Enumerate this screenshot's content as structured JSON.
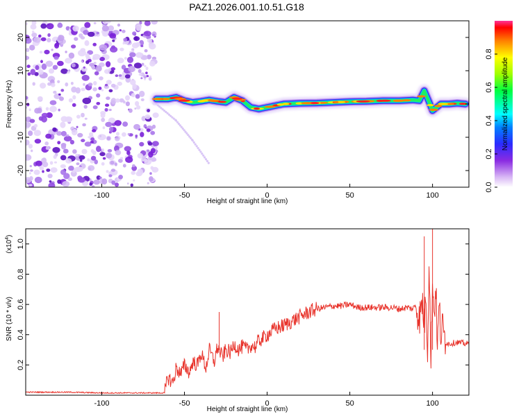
{
  "title": "PAZ1.2026.001.10.51.G18",
  "charts": [
    {
      "name": "spectrogram",
      "xlabel": "Height of straight line (km)",
      "ylabel": "Frequency (Hz)",
      "x_ticks": [
        "-100",
        "-50",
        "0",
        "50",
        "100"
      ],
      "y_ticks": [
        "20",
        "10",
        "0",
        "-10",
        "-20"
      ],
      "colorbar_label": "Normalized spectral amplitude",
      "colorbar_ticks": [
        "0.0",
        "0.2",
        "0.4",
        "0.6",
        "0.8"
      ]
    },
    {
      "name": "snr",
      "xlabel": "Height of straight line (km)",
      "ylabel": "SNR (10 * v/v)",
      "exponent_label": "(x10",
      "exponent": "4",
      "x_ticks": [
        "-100",
        "-50",
        "0",
        "50",
        "100"
      ],
      "y_ticks": [
        "1.0",
        "0.8",
        "0.6",
        "0.4",
        "0.2"
      ]
    }
  ],
  "chart_data": [
    {
      "type": "heatmap",
      "title": "PAZ1.2026.001.10.51.G18",
      "xlabel": "Height of straight line (km)",
      "ylabel": "Frequency (Hz)",
      "xlim": [
        -146,
        122
      ],
      "ylim": [
        -25,
        25
      ],
      "colorbar": {
        "label": "Normalized spectral amplitude",
        "range": [
          0,
          1
        ]
      },
      "noise_region_x": [
        -146,
        -67
      ],
      "signal_trace": {
        "x": [
          -67,
          -60,
          -55,
          -50,
          -45,
          -40,
          -35,
          -30,
          -25,
          -20,
          -15,
          -10,
          -5,
          0,
          5,
          10,
          20,
          30,
          40,
          50,
          60,
          70,
          80,
          88,
          92,
          95,
          98,
          100,
          105,
          110,
          115,
          120
        ],
        "frequency": [
          1.5,
          1.5,
          2.0,
          1.0,
          0.5,
          0.8,
          1.2,
          0.8,
          0.5,
          2.0,
          1.0,
          -1.0,
          -1.5,
          -1.0,
          -0.5,
          0.0,
          0.2,
          0.3,
          0.5,
          0.7,
          0.8,
          1.0,
          1.0,
          1.2,
          1.0,
          4.0,
          0.5,
          -2.0,
          0.0,
          0.0,
          0.2,
          0.0
        ]
      },
      "faint_branch": {
        "x": [
          -67,
          -55,
          -45,
          -35
        ],
        "frequency": [
          0,
          -5,
          -11,
          -18
        ]
      }
    },
    {
      "type": "line",
      "title": "",
      "xlabel": "Height of straight line (km)",
      "ylabel": "SNR (10 * v/v)",
      "y_scale": "x10^4",
      "xlim": [
        -146,
        122
      ],
      "ylim": [
        0,
        1.1
      ],
      "series": [
        {
          "name": "SNR",
          "color": "#e8332b",
          "x": [
            -146,
            -120,
            -100,
            -80,
            -62,
            -60,
            -57,
            -55,
            -52,
            -50,
            -47,
            -45,
            -42,
            -40,
            -37,
            -35,
            -32,
            -30,
            -27,
            -25,
            -22,
            -20,
            -17,
            -15,
            -12,
            -10,
            -7,
            -5,
            -2,
            0,
            5,
            10,
            15,
            20,
            25,
            30,
            35,
            40,
            45,
            50,
            55,
            60,
            65,
            70,
            75,
            80,
            85,
            88,
            90,
            92,
            94,
            95,
            96,
            97,
            98,
            99,
            100,
            101,
            102,
            103,
            104,
            105,
            106,
            108,
            110,
            115,
            120,
            122
          ],
          "y": [
            0.02,
            0.02,
            0.015,
            0.015,
            0.015,
            0.12,
            0.08,
            0.18,
            0.14,
            0.2,
            0.15,
            0.22,
            0.2,
            0.28,
            0.18,
            0.3,
            0.22,
            0.32,
            0.25,
            0.3,
            0.28,
            0.34,
            0.3,
            0.32,
            0.3,
            0.33,
            0.32,
            0.36,
            0.38,
            0.4,
            0.44,
            0.46,
            0.49,
            0.52,
            0.55,
            0.57,
            0.58,
            0.59,
            0.59,
            0.6,
            0.58,
            0.58,
            0.58,
            0.58,
            0.58,
            0.57,
            0.58,
            0.57,
            0.6,
            0.5,
            0.62,
            0.45,
            0.7,
            0.3,
            0.95,
            0.15,
            0.8,
            0.5,
            0.75,
            0.3,
            0.6,
            0.4,
            0.45,
            0.35,
            0.34,
            0.35,
            0.34,
            0.34
          ]
        }
      ],
      "spikes": [
        {
          "x": -29,
          "y": 0.55
        },
        {
          "x": 95,
          "y": 1.05
        },
        {
          "x": 100,
          "y": 1.1
        }
      ]
    }
  ]
}
